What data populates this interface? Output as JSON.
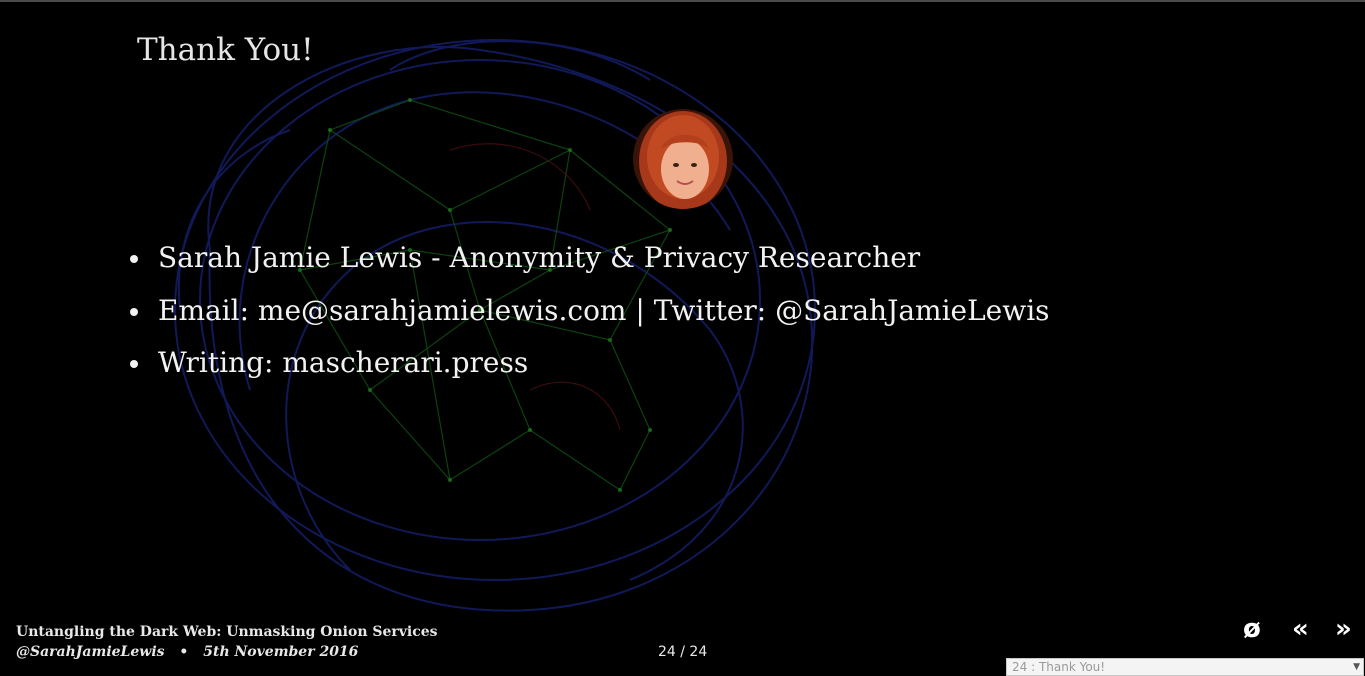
{
  "slide": {
    "title": "Thank You!",
    "bullets": [
      "Sarah Jamie Lewis - Anonymity & Privacy Researcher",
      "Email: me@sarahjamielewis.com | Twitter: @SarahJamieLewis",
      "Writing: mascherari.press"
    ]
  },
  "footer": {
    "talk_title": "Untangling the Dark Web: Unmasking Onion Services",
    "author_handle": "@SarahJamieLewis",
    "separator": "•",
    "date": "5th November 2016",
    "page_counter": "24 / 24"
  },
  "navigation": {
    "toggle_label": "ø",
    "prev_label": "«",
    "next_label": "»",
    "slide_select_value": "24 : Thank You!"
  },
  "colors": {
    "background": "#000000",
    "network_blue": "#1a2a8a",
    "network_green": "#1f8a1f",
    "network_red": "#8a1f1f"
  }
}
